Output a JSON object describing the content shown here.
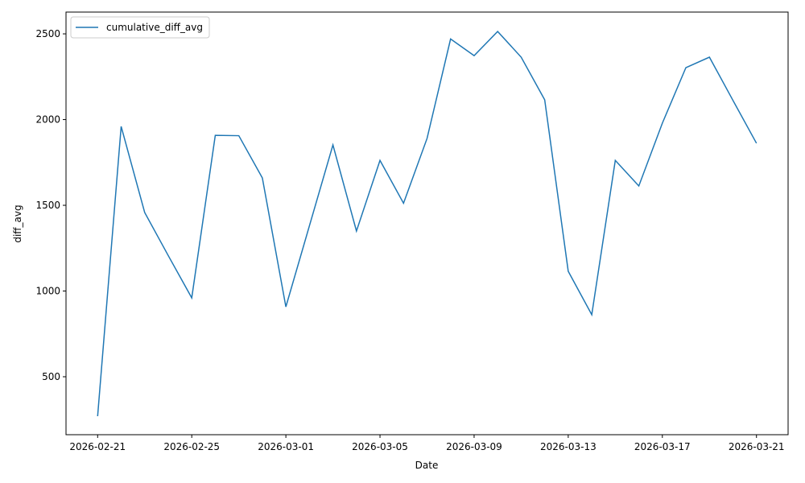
{
  "chart_data": {
    "type": "line",
    "x_label": "Date",
    "y_label": "diff_avg",
    "x": [
      "2026-02-21",
      "2026-02-22",
      "2026-02-23",
      "2026-02-24",
      "2026-02-25",
      "2026-02-26",
      "2026-02-27",
      "2026-02-28",
      "2026-03-01",
      "2026-03-02",
      "2026-03-03",
      "2026-03-04",
      "2026-03-05",
      "2026-03-06",
      "2026-03-07",
      "2026-03-08",
      "2026-03-09",
      "2026-03-10",
      "2026-03-11",
      "2026-03-12",
      "2026-03-13",
      "2026-03-14",
      "2026-03-15",
      "2026-03-16",
      "2026-03-17",
      "2026-03-18",
      "2026-03-19",
      "2026-03-20",
      "2026-03-21"
    ],
    "series": [
      {
        "name": "cumulative_diff_avg",
        "color": "#1f77b4",
        "values": [
          270,
          1960,
          1458,
          1207,
          960,
          1908,
          1906,
          1660,
          908,
          1380,
          1852,
          1350,
          1762,
          1512,
          1890,
          2470,
          2373,
          2514,
          2364,
          2115,
          1115,
          862,
          1762,
          1613,
          1979,
          2303,
          2364,
          2112,
          1862
        ]
      }
    ],
    "xticks": [
      "2026-02-21",
      "2026-02-25",
      "2026-03-01",
      "2026-03-05",
      "2026-03-09",
      "2026-03-13",
      "2026-03-17",
      "2026-03-21"
    ],
    "ylim": [
      162,
      2627
    ],
    "yticks": [
      500,
      1000,
      1500,
      2000,
      2500
    ],
    "legend": "upper-left"
  }
}
